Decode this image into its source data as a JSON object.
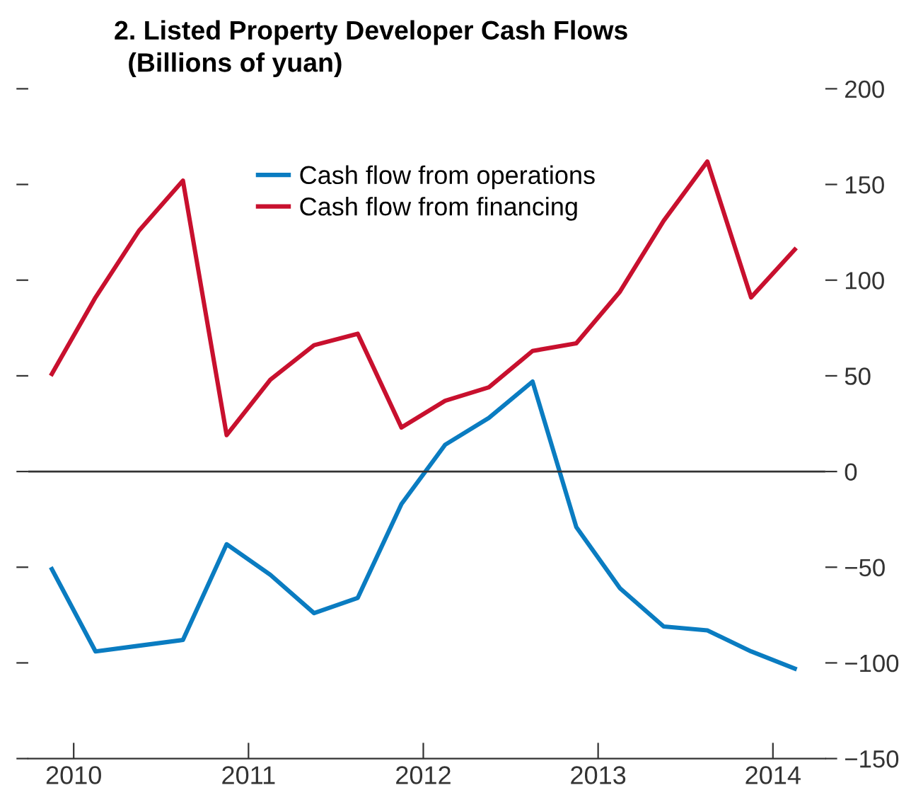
{
  "chart_data": {
    "type": "line",
    "title": "2. Listed Property Developer Cash Flows",
    "subtitle": "(Billions of yuan)",
    "x": [
      2009.875,
      2010.125,
      2010.375,
      2010.625,
      2010.875,
      2011.125,
      2011.375,
      2011.625,
      2011.875,
      2012.125,
      2012.375,
      2012.625,
      2012.875,
      2013.125,
      2013.375,
      2013.625,
      2013.875,
      2014.125
    ],
    "series": [
      {
        "name": "Cash flow from operations",
        "color": "#0a7cc1",
        "values": [
          -51,
          -94,
          -91,
          -88,
          -38,
          -54,
          -74,
          -66,
          -17,
          14,
          28,
          47,
          -29,
          -61,
          -81,
          -83,
          -94,
          -103
        ]
      },
      {
        "name": "Cash flow from financing",
        "color": "#c8102e",
        "values": [
          51,
          91,
          126,
          152,
          19,
          48,
          66,
          72,
          23,
          37,
          44,
          63,
          67,
          94,
          131,
          162,
          91,
          116
        ]
      }
    ],
    "xlim": [
      2009.74,
      2014.3
    ],
    "xticks": [
      2010,
      2011,
      2012,
      2013,
      2014
    ],
    "ylim": [
      -150,
      200
    ],
    "yticks": [
      -150,
      -100,
      -50,
      0,
      50,
      100,
      150,
      200
    ],
    "ref_lines": [
      {
        "axis": "y",
        "value": 0,
        "color": "#333333"
      }
    ],
    "legend": "top",
    "grid": false,
    "line_style": "solid"
  }
}
